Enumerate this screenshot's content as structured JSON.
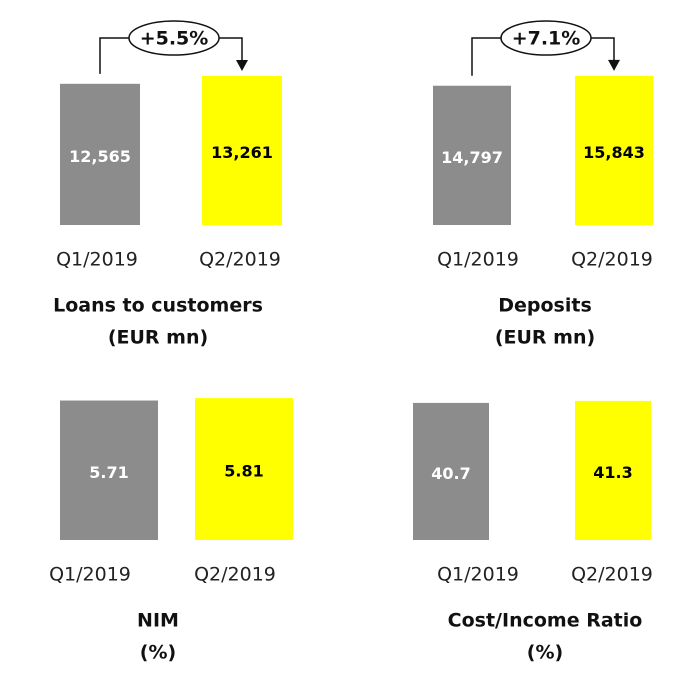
{
  "chart_data": [
    {
      "type": "bar",
      "title": "Loans to customers",
      "subtitle": "(EUR mn)",
      "categories": [
        "Q1/2019",
        "Q2/2019"
      ],
      "values": [
        12565,
        13261
      ],
      "value_labels": [
        "12,565",
        "13,261"
      ],
      "colors": [
        "#8c8c8c",
        "#ffff00"
      ],
      "ylim": [
        0,
        14240
      ],
      "annotation": "+5.5%"
    },
    {
      "type": "bar",
      "title": "Deposits",
      "subtitle": "(EUR mn)",
      "categories": [
        "Q1/2019",
        "Q2/2019"
      ],
      "values": [
        14797,
        15843
      ],
      "value_labels": [
        "14,797",
        "15,843"
      ],
      "colors": [
        "#8c8c8c",
        "#ffff00"
      ],
      "ylim": [
        0,
        17000
      ],
      "annotation": "+7.1%"
    },
    {
      "type": "bar",
      "title": "NIM",
      "subtitle": "(%)",
      "categories": [
        "Q1/2019",
        "Q2/2019"
      ],
      "values": [
        5.71,
        5.81
      ],
      "colors": [
        "#8c8c8c",
        "#ffff00"
      ],
      "ylim": [
        0,
        6.55
      ]
    },
    {
      "type": "bar",
      "title": "Cost/Income Ratio",
      "subtitle": "(%)",
      "categories": [
        "Q1/2019",
        "Q2/2019"
      ],
      "values": [
        40.7,
        41.3
      ],
      "colors": [
        "#8c8c8c",
        "#ffff00"
      ],
      "ylim": [
        0,
        47.5
      ]
    }
  ]
}
